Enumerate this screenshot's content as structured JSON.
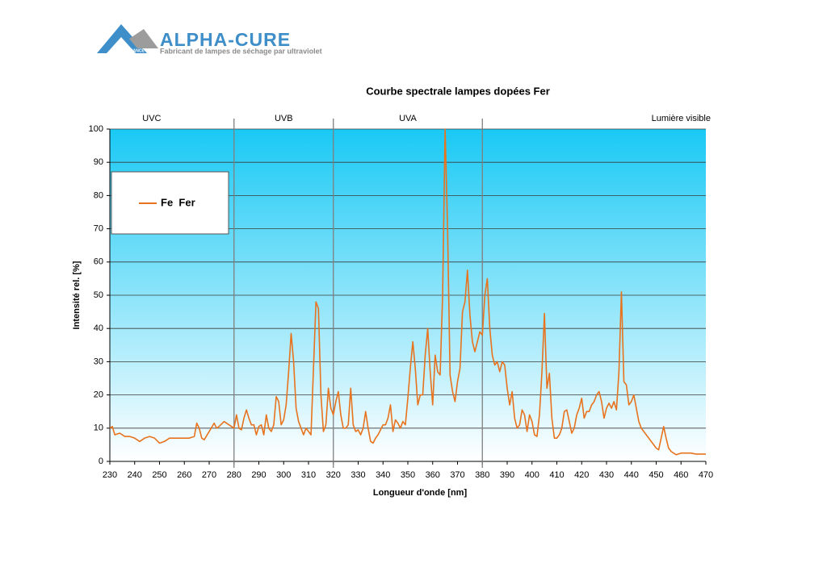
{
  "logo": {
    "name": "ALPHA-CURE",
    "badge": "FRANCE",
    "tagline": "Fabricant de lampes de séchage par ultraviolet"
  },
  "chart_data": {
    "type": "line",
    "title": "Courbe spectrale lampes dopées Fer",
    "x_label": "Longueur d'onde [nm]",
    "y_label": "Intensité rel. [%]",
    "regions": [
      "UVC",
      "UVB",
      "UVA",
      "Lumière visible"
    ],
    "region_bounds": [
      280,
      320,
      380
    ],
    "xlim": [
      230,
      470
    ],
    "ylim": [
      0,
      100
    ],
    "xticks": [
      230,
      240,
      250,
      260,
      270,
      280,
      290,
      300,
      310,
      320,
      330,
      340,
      350,
      360,
      370,
      380,
      390,
      400,
      410,
      420,
      430,
      440,
      450,
      460,
      470
    ],
    "yticks": [
      0,
      10,
      20,
      30,
      40,
      50,
      60,
      70,
      80,
      90,
      100
    ],
    "grid": true,
    "legend": "upper left",
    "x": [
      230,
      231,
      232,
      234,
      236,
      238,
      240,
      242,
      244,
      246,
      248,
      250,
      252,
      254,
      256,
      258,
      260,
      262,
      264,
      265,
      266,
      267,
      268,
      270,
      272,
      273,
      274,
      276,
      278,
      280,
      281,
      282,
      283,
      284,
      285,
      286,
      287,
      288,
      289,
      290,
      291,
      292,
      293,
      294,
      295,
      296,
      297,
      298,
      299,
      300,
      301,
      302,
      303,
      304,
      305,
      306,
      307,
      308,
      309,
      310,
      311,
      312,
      313,
      314,
      315,
      316,
      317,
      318,
      319,
      320,
      321,
      322,
      323,
      324,
      325,
      326,
      327,
      328,
      329,
      330,
      331,
      332,
      333,
      334,
      335,
      336,
      337,
      338,
      339,
      340,
      341,
      342,
      343,
      344,
      345,
      346,
      347,
      348,
      349,
      350,
      351,
      352,
      353,
      354,
      355,
      356,
      357,
      358,
      359,
      360,
      361,
      362,
      363,
      364,
      365,
      366,
      367,
      368,
      369,
      370,
      371,
      372,
      373,
      374,
      375,
      376,
      377,
      378,
      379,
      380,
      381,
      382,
      383,
      384,
      385,
      386,
      387,
      388,
      389,
      390,
      391,
      392,
      393,
      394,
      395,
      396,
      397,
      398,
      399,
      400,
      401,
      402,
      403,
      404,
      405,
      406,
      407,
      408,
      409,
      410,
      411,
      412,
      413,
      414,
      415,
      416,
      417,
      418,
      419,
      420,
      421,
      422,
      423,
      424,
      425,
      426,
      427,
      428,
      429,
      430,
      431,
      432,
      433,
      434,
      435,
      436,
      437,
      438,
      439,
      440,
      441,
      442,
      443,
      444,
      445,
      446,
      447,
      448,
      449,
      450,
      451,
      452,
      453,
      454,
      455,
      456,
      457,
      458,
      460,
      462,
      464,
      466,
      468,
      470
    ],
    "series": [
      {
        "name": "Fe  Fer",
        "color": "#e8731e",
        "values": [
          10,
          10.5,
          8,
          8.5,
          7.5,
          7.5,
          7,
          6,
          7,
          7.5,
          7,
          5.5,
          6,
          7,
          7,
          7,
          7,
          7,
          7.5,
          11.5,
          10,
          7,
          6.5,
          9,
          11.5,
          10,
          10.5,
          12,
          11,
          10,
          14,
          10,
          9.5,
          13,
          15.5,
          13,
          11,
          11,
          8,
          10.5,
          11,
          8,
          14,
          10,
          9,
          11,
          19.5,
          18,
          11,
          12.5,
          17,
          27,
          38.5,
          30,
          16,
          12,
          10,
          8,
          10,
          9,
          8,
          28,
          48,
          46,
          20,
          9,
          11,
          22,
          16,
          14,
          18,
          21,
          14,
          10,
          10,
          11,
          22,
          11,
          9,
          9.5,
          8,
          10,
          15,
          10,
          6,
          5.5,
          7,
          8,
          9.5,
          11,
          11,
          13,
          17,
          9,
          12.5,
          11.5,
          10,
          12,
          11,
          19,
          28,
          36,
          28,
          17,
          20,
          20,
          32,
          40,
          27,
          17,
          32,
          27,
          26,
          50,
          100,
          70,
          26,
          21,
          18,
          24,
          28,
          45,
          48,
          57.5,
          44,
          36,
          33,
          36,
          39,
          38,
          50,
          55,
          40,
          32,
          29,
          30,
          27,
          30,
          29,
          22,
          17,
          21,
          13,
          10,
          11,
          15.5,
          14,
          9,
          14,
          12,
          8,
          7.5,
          14,
          27,
          44.5,
          22,
          26.5,
          13,
          7,
          7,
          8,
          10,
          15,
          15.5,
          12,
          8.5,
          10,
          14,
          16,
          19,
          13,
          15,
          15,
          17,
          18,
          20,
          21,
          18,
          13,
          16,
          17.5,
          16,
          18,
          15.5,
          27,
          51,
          24,
          23,
          17,
          18,
          20,
          16,
          12,
          10,
          9,
          8,
          7,
          6,
          5,
          4,
          3.5,
          7,
          10.5,
          7,
          4,
          3,
          2.5,
          2,
          2.5,
          2.5,
          2.5,
          2.2,
          2.2,
          2.2
        ]
      }
    ]
  }
}
